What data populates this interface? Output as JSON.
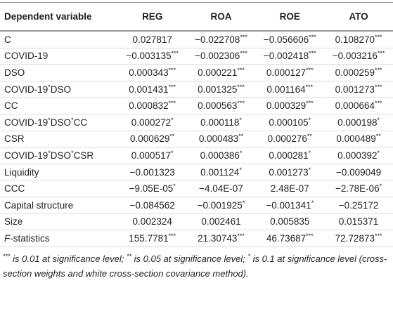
{
  "table": {
    "header": [
      "Dependent variable",
      "REG",
      "ROA",
      "ROE",
      "ATO"
    ],
    "rows": [
      [
        "C",
        "0.027817",
        "−0.022708***",
        "−0.056606***",
        "0.108270***"
      ],
      [
        "COVID-19",
        "−0.003135***",
        "−0.002306***",
        "−0.002418***",
        "−0.003216***"
      ],
      [
        "DSO",
        "0.000343***",
        "0.000221***",
        "0.000127***",
        "0.000259***"
      ],
      [
        "COVID-19*DSO",
        "0.001431***",
        "0.001325***",
        "0.001164***",
        "0.001273***"
      ],
      [
        "CC",
        "0.000832***",
        "0.000563***",
        "0.000329***",
        "0.000664***"
      ],
      [
        "COVID-19*DSO*CC",
        "0.000272*",
        "0.000118*",
        "0.000105*",
        "0.000198*"
      ],
      [
        "CSR",
        "0.000629**",
        "0.000483**",
        "0.000276**",
        "0.000489**"
      ],
      [
        "COVID-19*DSO*CSR",
        "0.000517*",
        "0.000386*",
        "0.000281*",
        "0.000392*"
      ],
      [
        "Liquidity",
        "−0.001323",
        "0.001124*",
        "0.001273*",
        "−0.009049"
      ],
      [
        "CCC",
        "−9.05E-05*",
        "−4.04E-07",
        "2.48E-07",
        "−2.78E-06*"
      ],
      [
        "Capital structure",
        "−0.084562",
        "−0.001925*",
        "−0.001341*",
        "−0.25172"
      ],
      [
        "Size",
        "0.002324",
        "0.002461",
        "0.005835",
        "0.015371"
      ],
      [
        "F-statistics",
        "155.7781***",
        "21.30743***",
        "46.73687***",
        "72.72873***"
      ]
    ],
    "footnote": "*** is 0.01 at significance level; ** is 0.05 at significance level; * is 0.1 at significance level (cross-section weights and white cross-section covariance method)."
  }
}
